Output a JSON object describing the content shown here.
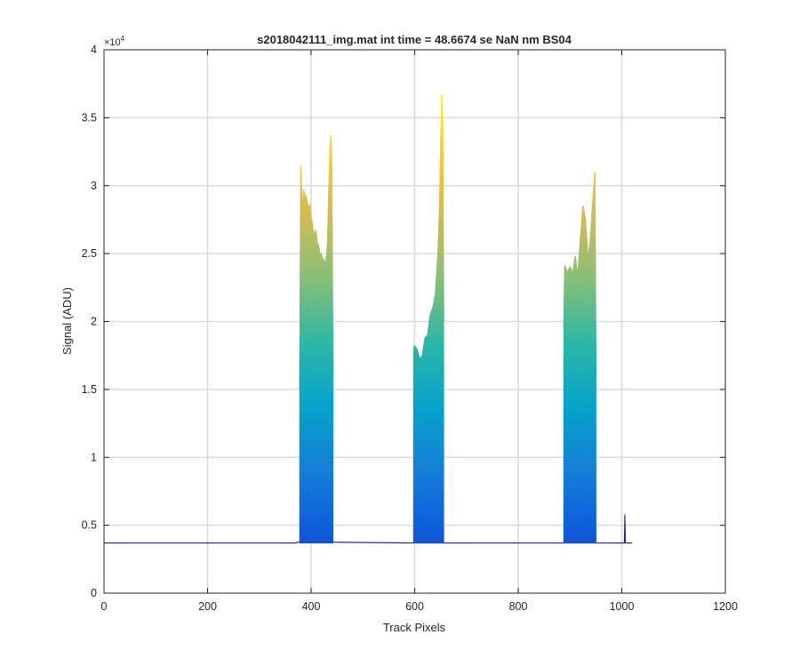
{
  "chart_data": {
    "type": "area",
    "title": "s2018042111_img.mat int time = 48.6674 se  NaN nm BS04",
    "xlabel": "Track Pixels",
    "ylabel": "Signal (ADU)",
    "xlim": [
      0,
      1200
    ],
    "ylim": [
      0,
      40000
    ],
    "x_ticks": [
      0,
      200,
      400,
      600,
      800,
      1000,
      1200
    ],
    "y_ticks": [
      0,
      5000,
      10000,
      15000,
      20000,
      25000,
      30000,
      35000,
      40000
    ],
    "x_tick_labels": [
      "0",
      "200",
      "400",
      "600",
      "800",
      "1000",
      "1200"
    ],
    "y_tick_labels": [
      "0",
      "0.5",
      "1",
      "1.5",
      "2",
      "2.5",
      "3",
      "3.5",
      "4"
    ],
    "y_exponent_label": "×10",
    "y_exponent_power": "4",
    "grid": true,
    "colormap": [
      "#352a87",
      "#0f5cdd",
      "#1481d6",
      "#06a4ca",
      "#2eb7a4",
      "#87bf77",
      "#d1bb59",
      "#fec832",
      "#f9fb0e"
    ],
    "axis_color": "#262626",
    "grid_color": "#dcdcdc",
    "baseline": {
      "x": [
        0,
        370,
        380,
        445,
        595,
        660,
        885,
        955,
        1005,
        1006,
        1007,
        1020
      ],
      "y": [
        3700,
        3700,
        3800,
        3750,
        3700,
        3700,
        3700,
        3700,
        3700,
        5800,
        3700,
        3700
      ]
    },
    "series": [
      {
        "x": [
          378,
          380,
          382,
          384,
          386,
          388,
          390,
          392,
          394,
          396,
          398,
          400,
          402,
          404,
          406,
          408,
          410,
          412,
          414,
          416,
          418,
          420,
          422,
          424,
          426,
          428,
          430,
          432,
          434,
          436,
          438,
          440,
          442
        ],
        "y": [
          15000,
          31400,
          29500,
          28000,
          29700,
          28800,
          29300,
          28900,
          28400,
          28500,
          28600,
          27600,
          27300,
          26600,
          26400,
          26700,
          26500,
          25700,
          25700,
          25200,
          25000,
          24900,
          24600,
          24600,
          24300,
          24400,
          24900,
          26000,
          29500,
          32000,
          33700,
          31000,
          16000
        ]
      },
      {
        "x": [
          598,
          600,
          605,
          610,
          615,
          620,
          625,
          630,
          635,
          640,
          645,
          648,
          650,
          652,
          654,
          656
        ],
        "y": [
          18000,
          18200,
          17900,
          17200,
          17500,
          18800,
          19000,
          20500,
          21000,
          22000,
          25000,
          28300,
          32500,
          36700,
          35000,
          20000
        ]
      },
      {
        "x": [
          888,
          890,
          895,
          900,
          905,
          910,
          915,
          920,
          925,
          930,
          935,
          940,
          945,
          948,
          950
        ],
        "y": [
          19500,
          24100,
          23600,
          24000,
          23500,
          24800,
          23300,
          26000,
          28500,
          27500,
          24500,
          26300,
          29500,
          31000,
          16000
        ]
      }
    ]
  }
}
